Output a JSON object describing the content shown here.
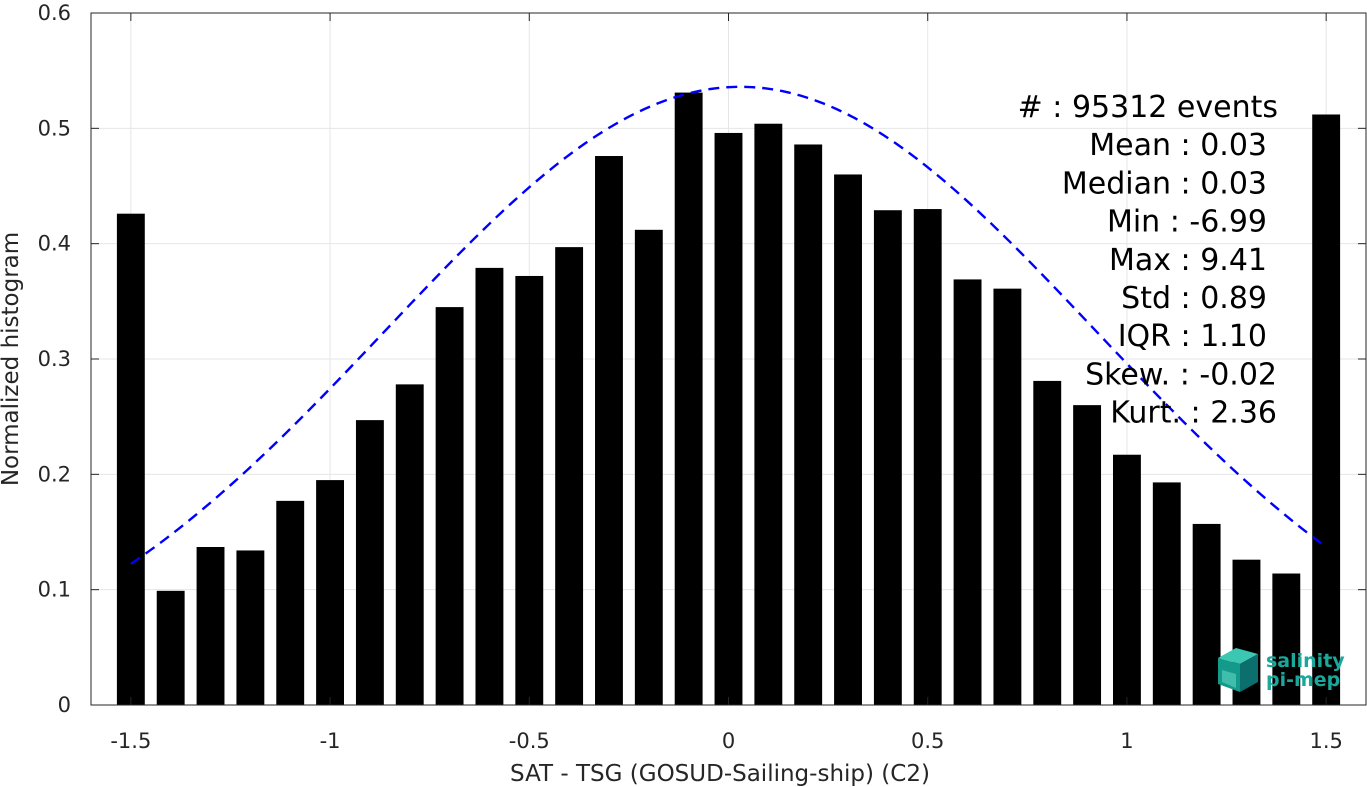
{
  "chart_data": {
    "type": "bar",
    "xlabel": "SAT - TSG (GOSUD-Sailing-ship) (C2)",
    "ylabel": "Normalized histogram",
    "xlim": [
      -1.6,
      1.6
    ],
    "ylim": [
      0,
      0.6
    ],
    "xticks": [
      -1.5,
      -1,
      -0.5,
      0,
      0.5,
      1,
      1.5
    ],
    "xtick_labels": [
      "-1.5",
      "-1",
      "-0.5",
      "0",
      "0.5",
      "1",
      "1.5"
    ],
    "yticks": [
      0,
      0.1,
      0.2,
      0.3,
      0.4,
      0.5,
      0.6
    ],
    "ytick_labels": [
      "0",
      "0.1",
      "0.2",
      "0.3",
      "0.4",
      "0.5",
      "0.6"
    ],
    "grid": true,
    "bar_color": "#000000",
    "bar_width": 0.07,
    "x": [
      -1.5,
      -1.4,
      -1.3,
      -1.2,
      -1.1,
      -1.0,
      -0.9,
      -0.8,
      -0.7,
      -0.6,
      -0.5,
      -0.4,
      -0.3,
      -0.2,
      -0.1,
      0.0,
      0.1,
      0.2,
      0.3,
      0.4,
      0.5,
      0.6,
      0.7,
      0.8,
      0.9,
      1.0,
      1.1,
      1.2,
      1.3,
      1.4,
      1.5
    ],
    "values": [
      0.426,
      0.099,
      0.137,
      0.134,
      0.177,
      0.195,
      0.247,
      0.278,
      0.345,
      0.379,
      0.372,
      0.397,
      0.476,
      0.412,
      0.531,
      0.496,
      0.504,
      0.486,
      0.46,
      0.429,
      0.43,
      0.369,
      0.361,
      0.281,
      0.26,
      0.217,
      0.193,
      0.157,
      0.126,
      0.114,
      0.512
    ],
    "fit_curve": {
      "type": "gaussian",
      "color": "#0000ff",
      "style": "dashed",
      "amplitude": 0.536,
      "mean": 0.03,
      "std": 0.89,
      "x_range": [
        -1.5,
        1.5
      ]
    },
    "annotations": [
      "#  : 95312 events",
      "Mean : 0.03",
      "Median : 0.03",
      "Min : -6.99",
      "Max : 9.41",
      "Std : 0.89",
      "IQR : 1.10",
      "Skew. : -0.02",
      "Kurt. : 2.36"
    ]
  },
  "logo": {
    "line1": "salinity",
    "line2": "pi-mep",
    "color": "#1aa89a"
  }
}
